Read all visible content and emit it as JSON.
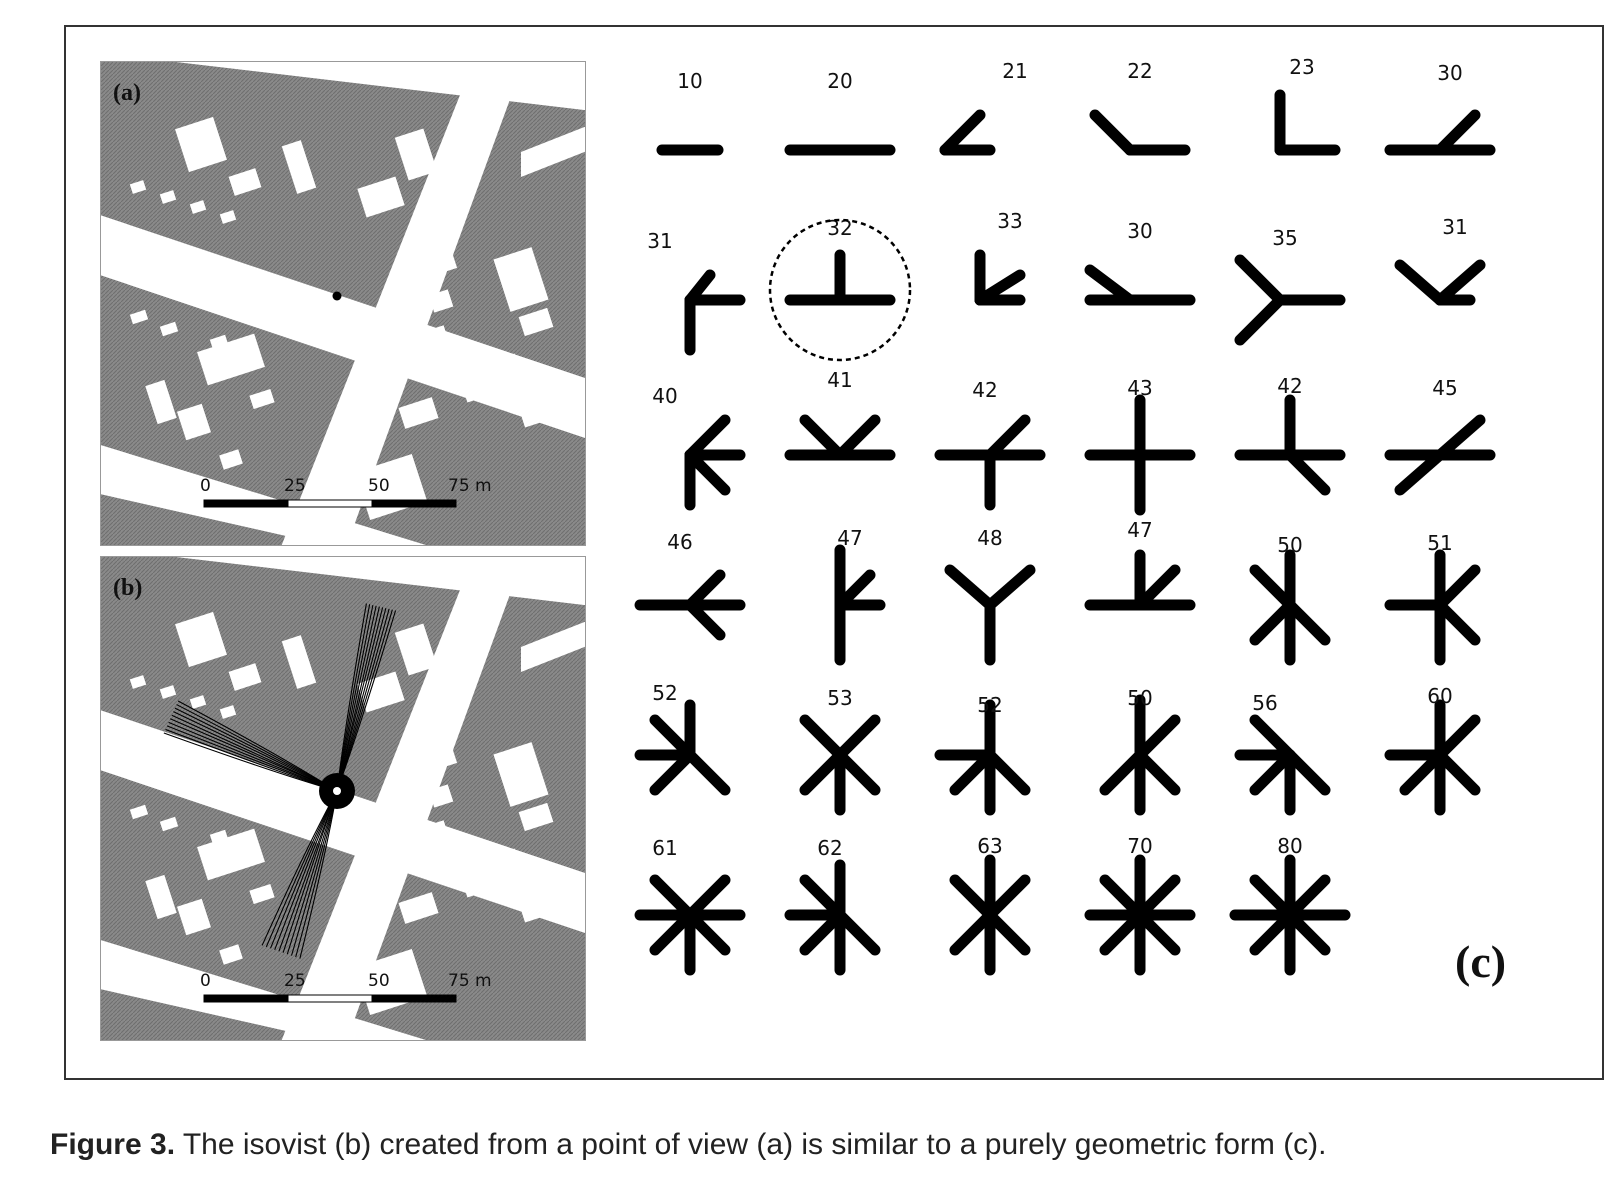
{
  "panel_a": {
    "label": "(a)"
  },
  "panel_b": {
    "label": "(b)"
  },
  "panel_c": {
    "label": "(c)"
  },
  "scale_bar": {
    "ticks": [
      "0",
      "25",
      "50",
      "75 m"
    ]
  },
  "glyph_numbers": [
    [
      "10",
      "20",
      "21",
      "22",
      "23",
      "30"
    ],
    [
      "31",
      "32",
      "33",
      "30",
      "35",
      "31"
    ],
    [
      "40",
      "41",
      "42",
      "43",
      "42",
      "45"
    ],
    [
      "46",
      "47",
      "48",
      "47",
      "50",
      "51"
    ],
    [
      "52",
      "53",
      "52",
      "50",
      "56",
      "60"
    ],
    [
      "61",
      "62",
      "63",
      "70",
      "80"
    ]
  ],
  "caption": {
    "label": "Figure 3.",
    "text": "The isovist (b) created from a point of view (a) is similar to a purely geometric form (c)."
  },
  "colors": {
    "building": "#7a7a7a",
    "street": "#ffffff",
    "ink": "#000000"
  }
}
